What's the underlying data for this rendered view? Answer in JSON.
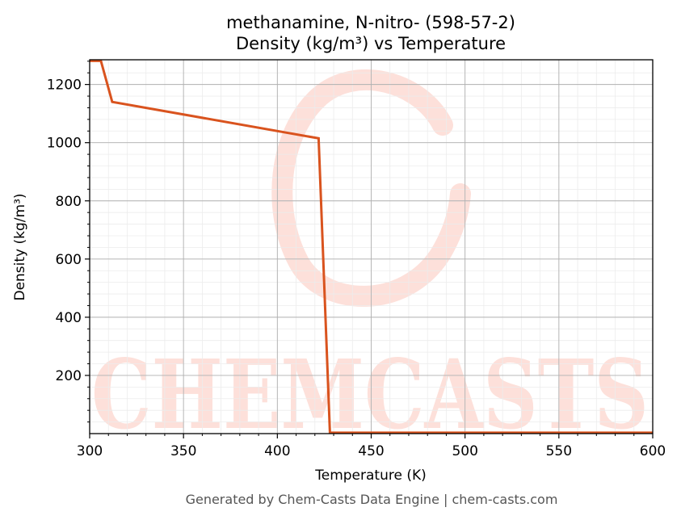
{
  "chart_data": {
    "type": "line",
    "title": "methanamine, N-nitro- (598-57-2)",
    "subtitle": "Density (kg/m³) vs Temperature",
    "xlabel": "Temperature (K)",
    "ylabel": "Density (kg/m³)",
    "xlim": [
      300,
      600
    ],
    "ylim": [
      0,
      1285
    ],
    "x_ticks": [
      300,
      350,
      400,
      450,
      500,
      550,
      600
    ],
    "y_ticks": [
      200,
      400,
      600,
      800,
      1000,
      1200
    ],
    "grid": true,
    "series": [
      {
        "color": "#d9531e",
        "x": [
          300,
          306,
          312,
          422,
          428,
          600
        ],
        "y": [
          1281,
          1281,
          1140,
          1015,
          3,
          3
        ]
      }
    ]
  },
  "watermark": {
    "text": "CHEMCASTS",
    "color": "#fde0da"
  },
  "footer": {
    "text": "Generated by Chem-Casts Data Engine | chem-casts.com"
  }
}
